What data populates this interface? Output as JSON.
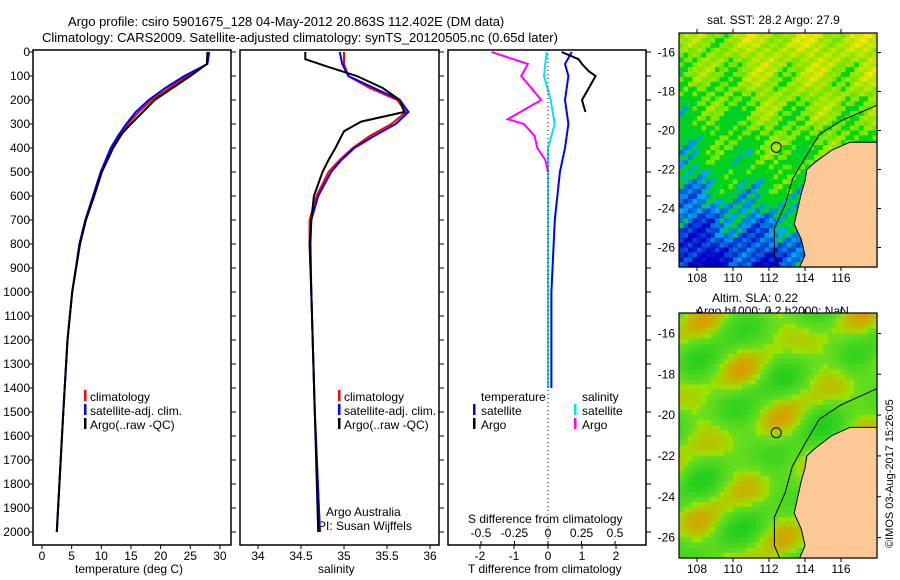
{
  "title_line1": "Argo profile: csiro 5901675_128 04-May-2012 20.863S 112.402E (DM data)",
  "title_line2": "Climatology: CARS2009. Satellite-adjusted climatology: synTS_20120505.nc (0.65d later)",
  "credit": "©IMOS 03-Aug-2017 15:26:05",
  "colors": {
    "climatology": "#ff0000",
    "satellite": "#0000ff",
    "argo": "#000000",
    "sal_satellite": "#00e5ee",
    "sal_argo": "#ff00ff",
    "land": "#fcc896"
  },
  "chart_data": [
    {
      "type": "line",
      "title": "",
      "xlabel": "temperature (deg C)",
      "ylabel": "depth",
      "xlim": [
        -1,
        31
      ],
      "ylim": [
        2000,
        0
      ],
      "xticks": [
        0,
        5,
        10,
        15,
        20,
        25,
        30
      ],
      "yticks": [
        0,
        100,
        200,
        300,
        400,
        500,
        600,
        700,
        800,
        900,
        1000,
        1100,
        1200,
        1300,
        1400,
        1500,
        1600,
        1700,
        1800,
        1900,
        2000
      ],
      "legend": [
        "climatology",
        "satellite-adj. clim.",
        "Argo(..raw -QC)"
      ],
      "legend_placement": "lower-center",
      "series": [
        {
          "name": "climatology",
          "depth": [
            0,
            50,
            100,
            150,
            200,
            250,
            300,
            350,
            400,
            500,
            600,
            700,
            800,
            1000,
            1200,
            1500,
            2000
          ],
          "values": [
            28.2,
            27.8,
            24.5,
            21.5,
            18.5,
            16.3,
            14.5,
            13,
            11.8,
            10,
            8.7,
            7.4,
            6.4,
            5.1,
            4.3,
            3.6,
            2.5
          ]
        },
        {
          "name": "satellite-adj. clim.",
          "depth": [
            0,
            50,
            100,
            150,
            200,
            250,
            300,
            350,
            400,
            500,
            600,
            700,
            800,
            1000,
            1200,
            1500,
            2000
          ],
          "values": [
            28.2,
            27.9,
            24,
            20.8,
            18,
            15.8,
            14.2,
            12.8,
            11.6,
            9.9,
            8.6,
            7.3,
            6.3,
            5.1,
            4.3,
            3.6,
            2.5
          ]
        },
        {
          "name": "Argo(..raw -QC)",
          "depth": [
            0,
            50,
            100,
            150,
            200,
            250,
            300,
            340,
            400,
            500,
            600,
            700,
            800,
            1000,
            1200,
            1500,
            2000
          ],
          "values": [
            27.9,
            27.8,
            25,
            22,
            19,
            17,
            15,
            13.5,
            12,
            10.1,
            8.8,
            7.4,
            6.4,
            5.1,
            4.3,
            3.6,
            2.5
          ]
        }
      ]
    },
    {
      "type": "line",
      "xlabel": "salinity",
      "xlim": [
        33.8,
        36.2
      ],
      "ylim": [
        2000,
        0
      ],
      "xticks": [
        34,
        34.5,
        35,
        35.5,
        36
      ],
      "legend": [
        "climatology",
        "satellite-adj. clim.",
        "Argo(..raw -QC)"
      ],
      "annotation1": "Argo Australia",
      "annotation2": "PI: Susan Wijffels",
      "series": [
        {
          "name": "climatology",
          "depth": [
            0,
            50,
            100,
            150,
            200,
            250,
            300,
            350,
            400,
            450,
            500,
            600,
            700,
            800,
            1000,
            1500,
            2000
          ],
          "values": [
            35,
            35,
            35.05,
            35.3,
            35.62,
            35.72,
            35.55,
            35.3,
            35.1,
            34.95,
            34.82,
            34.68,
            34.6,
            34.6,
            34.62,
            34.66,
            34.72
          ]
        },
        {
          "name": "satellite-adj. clim.",
          "depth": [
            0,
            50,
            100,
            150,
            200,
            250,
            300,
            350,
            400,
            450,
            500,
            600,
            700,
            800,
            1000,
            1500,
            2000
          ],
          "values": [
            34.95,
            34.98,
            35.05,
            35.35,
            35.65,
            35.75,
            35.6,
            35.35,
            35.12,
            34.97,
            34.85,
            34.7,
            34.62,
            34.61,
            34.62,
            34.66,
            34.72
          ]
        },
        {
          "name": "Argo(..raw -QC)",
          "depth": [
            0,
            30,
            60,
            100,
            150,
            200,
            250,
            290,
            330,
            400,
            450,
            500,
            600,
            700,
            800,
            1000,
            1500,
            2000
          ],
          "values": [
            34.55,
            34.55,
            34.8,
            35.15,
            35.45,
            35.65,
            35.7,
            35.2,
            35.0,
            34.9,
            34.82,
            34.75,
            34.65,
            34.62,
            34.6,
            34.62,
            34.66,
            34.7
          ]
        }
      ]
    },
    {
      "type": "line",
      "xlabel": "T difference from climatology",
      "x2label": "S difference from climatology",
      "xlim": [
        -2.9,
        2.9
      ],
      "x2lim": [
        -0.725,
        0.725
      ],
      "xticks": [
        -2,
        -1,
        0,
        1,
        2
      ],
      "x2ticks": [
        -0.5,
        -0.25,
        0,
        0.25,
        0.5
      ],
      "ylim": [
        2000,
        0
      ],
      "legend_temperature": "temperature",
      "legend_salinity": "salinity",
      "legend": [
        "satellite",
        "Argo",
        "satellite",
        "Argo"
      ],
      "series": [
        {
          "name": "T satellite",
          "depth": [
            0,
            50,
            100,
            150,
            200,
            300,
            400,
            500,
            700,
            1000,
            1400
          ],
          "values": [
            0.7,
            0.5,
            0.6,
            0.55,
            0.5,
            0.6,
            0.5,
            0.35,
            0.2,
            0.1,
            0.1
          ]
        },
        {
          "name": "T Argo",
          "depth": [
            0,
            30,
            50,
            80,
            100,
            150,
            200,
            250
          ],
          "values": [
            0.4,
            0.9,
            1.0,
            1.2,
            1.4,
            1.2,
            1.0,
            1.1
          ]
        },
        {
          "name": "S satellite",
          "depth": [
            0,
            50,
            100,
            200,
            300,
            400,
            500,
            700,
            1000,
            1400
          ],
          "values": [
            -0.01,
            -0.02,
            -0.03,
            0.02,
            0.05,
            0.0,
            0.0,
            0.0,
            0.0,
            0.0
          ]
        },
        {
          "name": "S Argo",
          "depth": [
            0,
            50,
            80,
            100,
            200,
            280,
            300,
            350,
            400,
            450,
            500
          ],
          "values": [
            -0.42,
            -0.15,
            -0.18,
            -0.2,
            -0.05,
            -0.3,
            -0.18,
            -0.1,
            -0.08,
            -0.02,
            0.0
          ]
        }
      ]
    },
    {
      "type": "heatmap",
      "title": "sat. SST: 28.2 Argo: 27.9",
      "xlim": [
        107,
        118
      ],
      "ylim": [
        -27,
        -15
      ],
      "xticks": [
        108,
        110,
        112,
        114,
        116
      ],
      "yticks": [
        -16,
        -18,
        -20,
        -22,
        -24,
        -26
      ],
      "marker": [
        112.402,
        -20.863
      ]
    },
    {
      "type": "heatmap",
      "title1": "Altim. SLA: 0.22",
      "title2": "Argo h1000: 0.2 h2000: NaN",
      "xlim": [
        107,
        118
      ],
      "ylim": [
        -27,
        -15
      ],
      "xticks": [
        108,
        110,
        112,
        114,
        116
      ],
      "yticks": [
        -16,
        -18,
        -20,
        -22,
        -24,
        -26
      ],
      "marker": [
        112.402,
        -20.863
      ]
    }
  ]
}
